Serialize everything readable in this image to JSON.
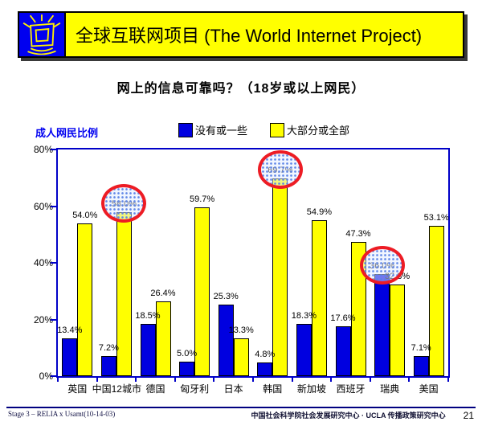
{
  "header": {
    "title": "全球互联网项目 (The World Internet Project)"
  },
  "slide_title": "网上的信息可靠吗？（18岁或以上网民）",
  "colors": {
    "banner_bg": "#FFFF00",
    "logo_bg": "#0000F0",
    "axis": "#0000C8",
    "highlight": "#ED1C24",
    "footer_line": "#000080"
  },
  "chart_data": {
    "type": "bar",
    "title": "成人网民比例",
    "categories": [
      "英国",
      "中国12城市",
      "德国",
      "匈牙利",
      "日本",
      "韩国",
      "新加坡",
      "西班牙",
      "瑞典",
      "美国"
    ],
    "series": [
      {
        "key": "no-or-some",
        "name": "没有或一些",
        "color": "#0000E0",
        "values": [
          13.4,
          7.2,
          18.5,
          5.0,
          25.3,
          4.8,
          18.3,
          17.6,
          36.0,
          7.1
        ]
      },
      {
        "key": "most-or-all",
        "name": "大部分或全部",
        "color": "#FFFF00",
        "values": [
          54.0,
          58.0,
          26.4,
          59.7,
          13.3,
          69.7,
          54.9,
          47.3,
          32.3,
          53.1
        ]
      }
    ],
    "value_label_format": "percent-1dp",
    "y_ticks": [
      "0%",
      "20%",
      "40%",
      "60%",
      "80%"
    ],
    "ylim": [
      0,
      80
    ],
    "grid": false,
    "legend_position": "top-center",
    "annotations": [
      {
        "type": "red-circle",
        "category": "中国12城市",
        "series": 1,
        "label": "58.0%"
      },
      {
        "type": "red-circle",
        "category": "韩国",
        "series": 1,
        "label": "69.7%"
      },
      {
        "type": "red-circle",
        "category": "瑞典",
        "series": 0,
        "label": "36.0%"
      }
    ]
  },
  "footer": {
    "left": "Stage 3 – RELIA x Usamt(10-14-03)",
    "center": "中国社会科学院社会发展研究中心 · UCLA 传播政策研究中心",
    "page": "21"
  }
}
